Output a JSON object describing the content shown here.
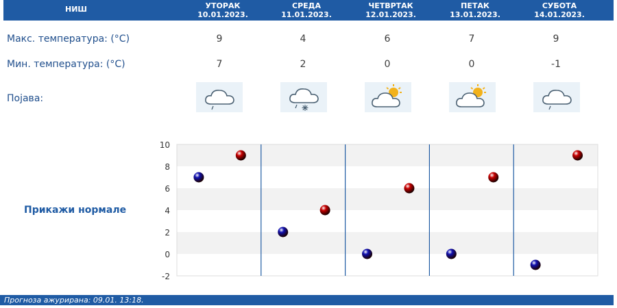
{
  "header": {
    "city": "НИШ",
    "days": [
      {
        "name": "УТОРАК",
        "date": "10.01.2023."
      },
      {
        "name": "СРЕДА",
        "date": "11.01.2023."
      },
      {
        "name": "ЧЕТВРТАК",
        "date": "12.01.2023."
      },
      {
        "name": "ПЕТАК",
        "date": "13.01.2023."
      },
      {
        "name": "СУБОТА",
        "date": "14.01.2023."
      }
    ]
  },
  "rows": {
    "max_label": "Макс. температура: (°C)",
    "min_label": "Мин. температура: (°C)",
    "phenomenon_label": "Појава:",
    "max": [
      "9",
      "4",
      "6",
      "7",
      "9"
    ],
    "min": [
      "7",
      "2",
      "0",
      "0",
      "-1"
    ],
    "icons": [
      "cloud-drizzle-icon",
      "cloud-snow-icon",
      "partly-sunny-icon",
      "partly-sunny-icon",
      "cloud-drizzle-icon"
    ]
  },
  "show_normals_label": "Прикажи нормале",
  "chart_data": {
    "type": "scatter",
    "ylim": [
      -2,
      10
    ],
    "yticks": [
      "10",
      "8",
      "6",
      "4",
      "2",
      "0",
      "-2"
    ],
    "series": [
      {
        "values": [
          7,
          2,
          0,
          0,
          -1
        ],
        "color": "#1010b0"
      },
      {
        "values": [
          9,
          4,
          6,
          7,
          9
        ],
        "color": "#c80000"
      }
    ]
  },
  "footer": {
    "text": "Прогноза ажурирана:  09.01. 13:18."
  },
  "colors": {
    "brand": "#1f5ba4",
    "label_text": "#1f4e8c"
  }
}
